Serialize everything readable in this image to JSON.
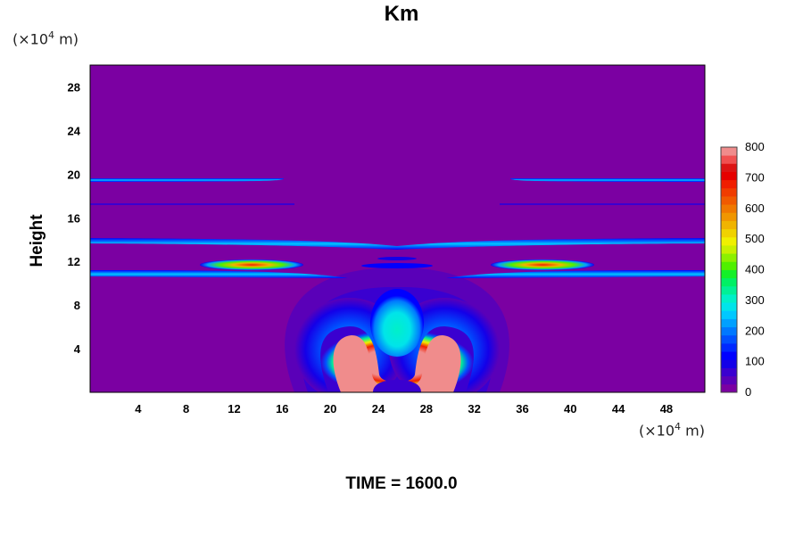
{
  "chart_data": {
    "type": "heatmap",
    "title": "Km",
    "ylabel": "Height",
    "xlabel": "",
    "x_unit": {
      "prefix": "(×10",
      "exp": "4",
      "suffix": " m)"
    },
    "y_unit": {
      "prefix": "(×10",
      "exp": "4",
      "suffix": " m)"
    },
    "xlim": [
      0,
      51.2
    ],
    "ylim": [
      0,
      30
    ],
    "x_ticks": [
      4,
      8,
      12,
      16,
      20,
      24,
      28,
      32,
      36,
      40,
      44,
      48
    ],
    "y_ticks": [
      4,
      8,
      12,
      16,
      20,
      24,
      28
    ],
    "colorbar": {
      "range": [
        0,
        800
      ],
      "tick_labels": [
        "0",
        "100",
        "200",
        "300",
        "400",
        "500",
        "600",
        "700",
        "800"
      ],
      "colors": [
        "#7b00a2",
        "#5a00b8",
        "#3a00d0",
        "#1400e8",
        "#0000ff",
        "#0028ff",
        "#0050ff",
        "#0078ff",
        "#00a0ff",
        "#00c8ff",
        "#00e4ea",
        "#00f0c8",
        "#00f096",
        "#00f064",
        "#14f028",
        "#50f000",
        "#8cf000",
        "#c8f000",
        "#f0f000",
        "#f0d200",
        "#f0b400",
        "#f09600",
        "#f07800",
        "#f05a00",
        "#f03c00",
        "#f01e00",
        "#e60000",
        "#dc1414",
        "#f05050",
        "#f08c8c"
      ]
    },
    "background_value": 0
  },
  "footer": {
    "label": "TIME = 1600.0"
  }
}
